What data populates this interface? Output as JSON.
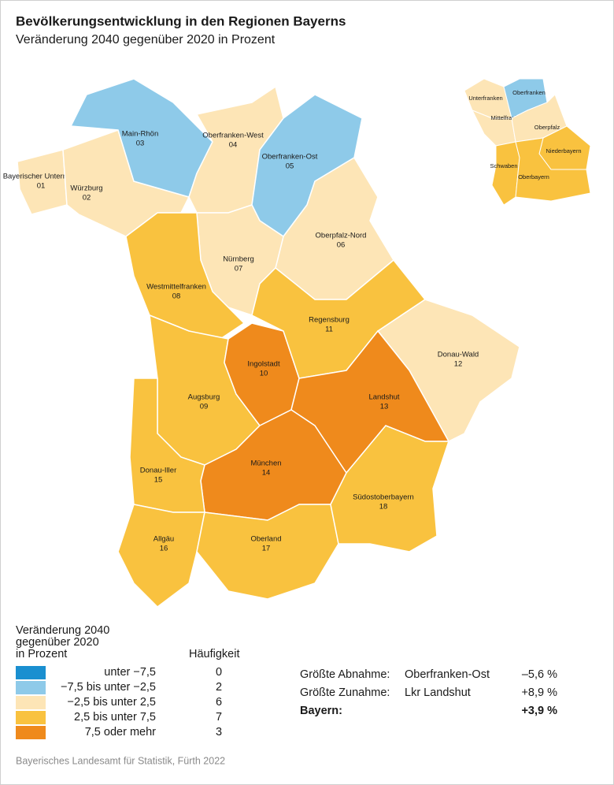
{
  "header": {
    "title": "Bevölkerungsentwicklung in den Regionen Bayerns",
    "subtitle": "Veränderung 2040 gegenüber 2020 in Prozent"
  },
  "regions": [
    {
      "name": "Bayerischer Untermain",
      "code": "01",
      "color": "#fde5b6"
    },
    {
      "name": "Würzburg",
      "code": "02",
      "color": "#fde5b6"
    },
    {
      "name": "Main-Rhön",
      "code": "03",
      "color": "#8ecae9"
    },
    {
      "name": "Oberfranken-West",
      "code": "04",
      "color": "#fde5b6"
    },
    {
      "name": "Oberfranken-Ost",
      "code": "05",
      "color": "#8ecae9"
    },
    {
      "name": "Oberpfalz-Nord",
      "code": "06",
      "color": "#fde5b6"
    },
    {
      "name": "Nürnberg",
      "code": "07",
      "color": "#fde5b6"
    },
    {
      "name": "Westmittelfranken",
      "code": "08",
      "color": "#f9c23f"
    },
    {
      "name": "Augsburg",
      "code": "09",
      "color": "#f9c23f"
    },
    {
      "name": "Ingolstadt",
      "code": "10",
      "color": "#ef8a1c"
    },
    {
      "name": "Regensburg",
      "code": "11",
      "color": "#f9c23f"
    },
    {
      "name": "Donau-Wald",
      "code": "12",
      "color": "#fde5b6"
    },
    {
      "name": "Landshut",
      "code": "13",
      "color": "#ef8a1c"
    },
    {
      "name": "München",
      "code": "14",
      "color": "#ef8a1c"
    },
    {
      "name": "Donau-Iller",
      "code": "15",
      "color": "#f9c23f"
    },
    {
      "name": "Allgäu",
      "code": "16",
      "color": "#f9c23f"
    },
    {
      "name": "Oberland",
      "code": "17",
      "color": "#f9c23f"
    },
    {
      "name": "Südostoberbayern",
      "code": "18",
      "color": "#f9c23f"
    }
  ],
  "inset": [
    {
      "name": "Unterfranken",
      "color": "#fde5b6"
    },
    {
      "name": "Oberfranken",
      "color": "#8ecae9"
    },
    {
      "name": "Mittelfranken",
      "color": "#fde5b6"
    },
    {
      "name": "Oberpfalz",
      "color": "#fde5b6"
    },
    {
      "name": "Niederbayern",
      "color": "#f9c23f"
    },
    {
      "name": "Schwaben",
      "color": "#f9c23f"
    },
    {
      "name": "Oberbayern",
      "color": "#f9c23f"
    }
  ],
  "legend": {
    "heading": [
      "Veränderung 2040",
      "gegenüber 2020",
      "in Prozent"
    ],
    "count_heading": "Häufigkeit",
    "classes": [
      {
        "label": "unter −7,5",
        "count": 0,
        "color": "#1a8fd0"
      },
      {
        "label": "−7,5 bis unter −2,5",
        "count": 2,
        "color": "#8ecae9"
      },
      {
        "label": "−2,5 bis unter 2,5",
        "count": 6,
        "color": "#fde5b6"
      },
      {
        "label": "2,5 bis unter 7,5",
        "count": 7,
        "color": "#f9c23f"
      },
      {
        "label": "7,5 oder mehr",
        "count": 3,
        "color": "#ef8a1c"
      }
    ]
  },
  "stats": [
    {
      "label": "Größte Abnahme:",
      "detail": "Oberfranken-Ost",
      "value": "–5,6 %"
    },
    {
      "label": "Größte Zunahme:",
      "detail": "Lkr Landshut",
      "value": "+8,9 %"
    },
    {
      "label": "Bayern:",
      "value": "+3,9 %"
    }
  ],
  "source": "Bayerisches Landesamt für Statistik, Fürth 2022"
}
